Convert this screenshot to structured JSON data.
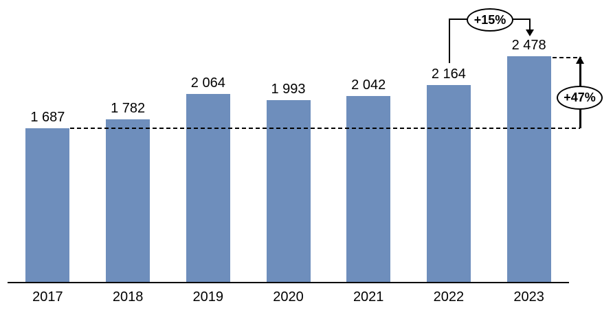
{
  "chart_data": {
    "type": "bar",
    "title": "",
    "xlabel": "",
    "ylabel": "",
    "categories": [
      "2017",
      "2018",
      "2019",
      "2020",
      "2021",
      "2022",
      "2023"
    ],
    "values": [
      1687,
      1782,
      2064,
      1993,
      2042,
      2164,
      2478
    ],
    "value_labels": [
      "1 687",
      "1 782",
      "2 064",
      "1 993",
      "2 042",
      "2 164",
      "2 478"
    ],
    "ylim": [
      0,
      2478
    ],
    "grid": false,
    "legend": false,
    "bar_color": "#6e8ebc",
    "axis_color": "#000000",
    "reference_line": {
      "value": 1687,
      "from_category": "2017",
      "style": "dashed"
    },
    "annotations": [
      {
        "id": "growth-2022-2023",
        "label": "+15%",
        "from": "2022",
        "to": "2023",
        "shape": "ellipse"
      },
      {
        "id": "growth-2017-2023",
        "label": "+47%",
        "from": "2017",
        "to": "2023",
        "shape": "ellipse"
      }
    ]
  }
}
